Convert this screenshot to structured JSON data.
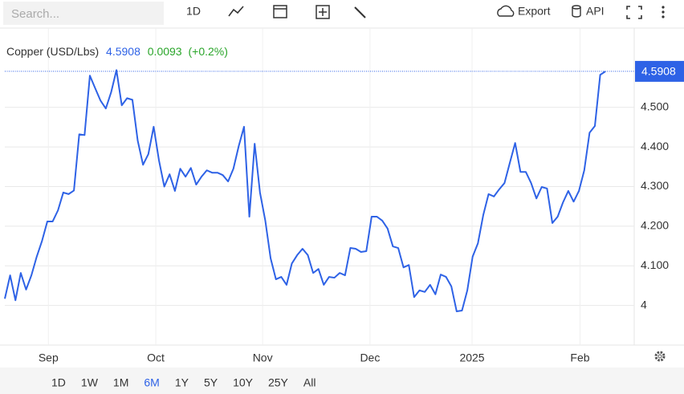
{
  "toolbar": {
    "search": "Search...",
    "interval": "1D",
    "export": "Export",
    "api": "API"
  },
  "chart_data": {
    "type": "line",
    "title": "Copper (USD/Lbs)",
    "price": 4.5908,
    "change": 0.0093,
    "change_pct": "(+0.2%)",
    "series": [
      {
        "name": "Copper",
        "color": "#2e62e6",
        "values": [
          4.017,
          4.076,
          4.013,
          4.082,
          4.04,
          4.076,
          4.123,
          4.163,
          4.212,
          4.212,
          4.24,
          4.285,
          4.281,
          4.29,
          4.432,
          4.43,
          4.58,
          4.548,
          4.517,
          4.497,
          4.538,
          4.594,
          4.505,
          4.523,
          4.519,
          4.416,
          4.355,
          4.382,
          4.451,
          4.366,
          4.3,
          4.331,
          4.289,
          4.345,
          4.325,
          4.347,
          4.305,
          4.325,
          4.341,
          4.335,
          4.335,
          4.329,
          4.313,
          4.345,
          4.402,
          4.451,
          4.224,
          4.408,
          4.285,
          4.214,
          4.119,
          4.066,
          4.072,
          4.052,
          4.106,
          4.127,
          4.143,
          4.127,
          4.082,
          4.092,
          4.052,
          4.072,
          4.07,
          4.082,
          4.076,
          4.145,
          4.143,
          4.135,
          4.137,
          4.224,
          4.224,
          4.214,
          4.194,
          4.149,
          4.145,
          4.096,
          4.102,
          4.021,
          4.038,
          4.034,
          4.052,
          4.028,
          4.078,
          4.072,
          4.048,
          3.985,
          3.987,
          4.038,
          4.123,
          4.157,
          4.228,
          4.281,
          4.275,
          4.293,
          4.309,
          4.36,
          4.41,
          4.337,
          4.337,
          4.309,
          4.27,
          4.299,
          4.295,
          4.208,
          4.224,
          4.26,
          4.289,
          4.262,
          4.289,
          4.341,
          4.436,
          4.453,
          4.582,
          4.5908
        ]
      }
    ],
    "xlim": [
      0,
      118.4
    ],
    "xticks": [
      {
        "value": 8.2,
        "label": "Sep"
      },
      {
        "value": 28.4,
        "label": "Oct"
      },
      {
        "value": 48.5,
        "label": "Nov"
      },
      {
        "value": 68.7,
        "label": "Dec"
      },
      {
        "value": 87.9,
        "label": "2025"
      },
      {
        "value": 108.2,
        "label": "Feb"
      }
    ],
    "ylim": [
      3.9,
      4.7
    ],
    "yticks": [
      4,
      {
        "value": 4.1,
        "label": "4.100"
      },
      {
        "value": 4.2,
        "label": "4.200"
      },
      {
        "value": 4.3,
        "label": "4.300"
      },
      {
        "value": 4.4,
        "label": "4.400"
      },
      {
        "value": 4.5,
        "label": "4.500"
      }
    ],
    "grid": true,
    "ranges": [
      "1D",
      "1W",
      "1M",
      "6M",
      "1Y",
      "5Y",
      "10Y",
      "25Y",
      "All"
    ],
    "selected_range": "6M"
  }
}
